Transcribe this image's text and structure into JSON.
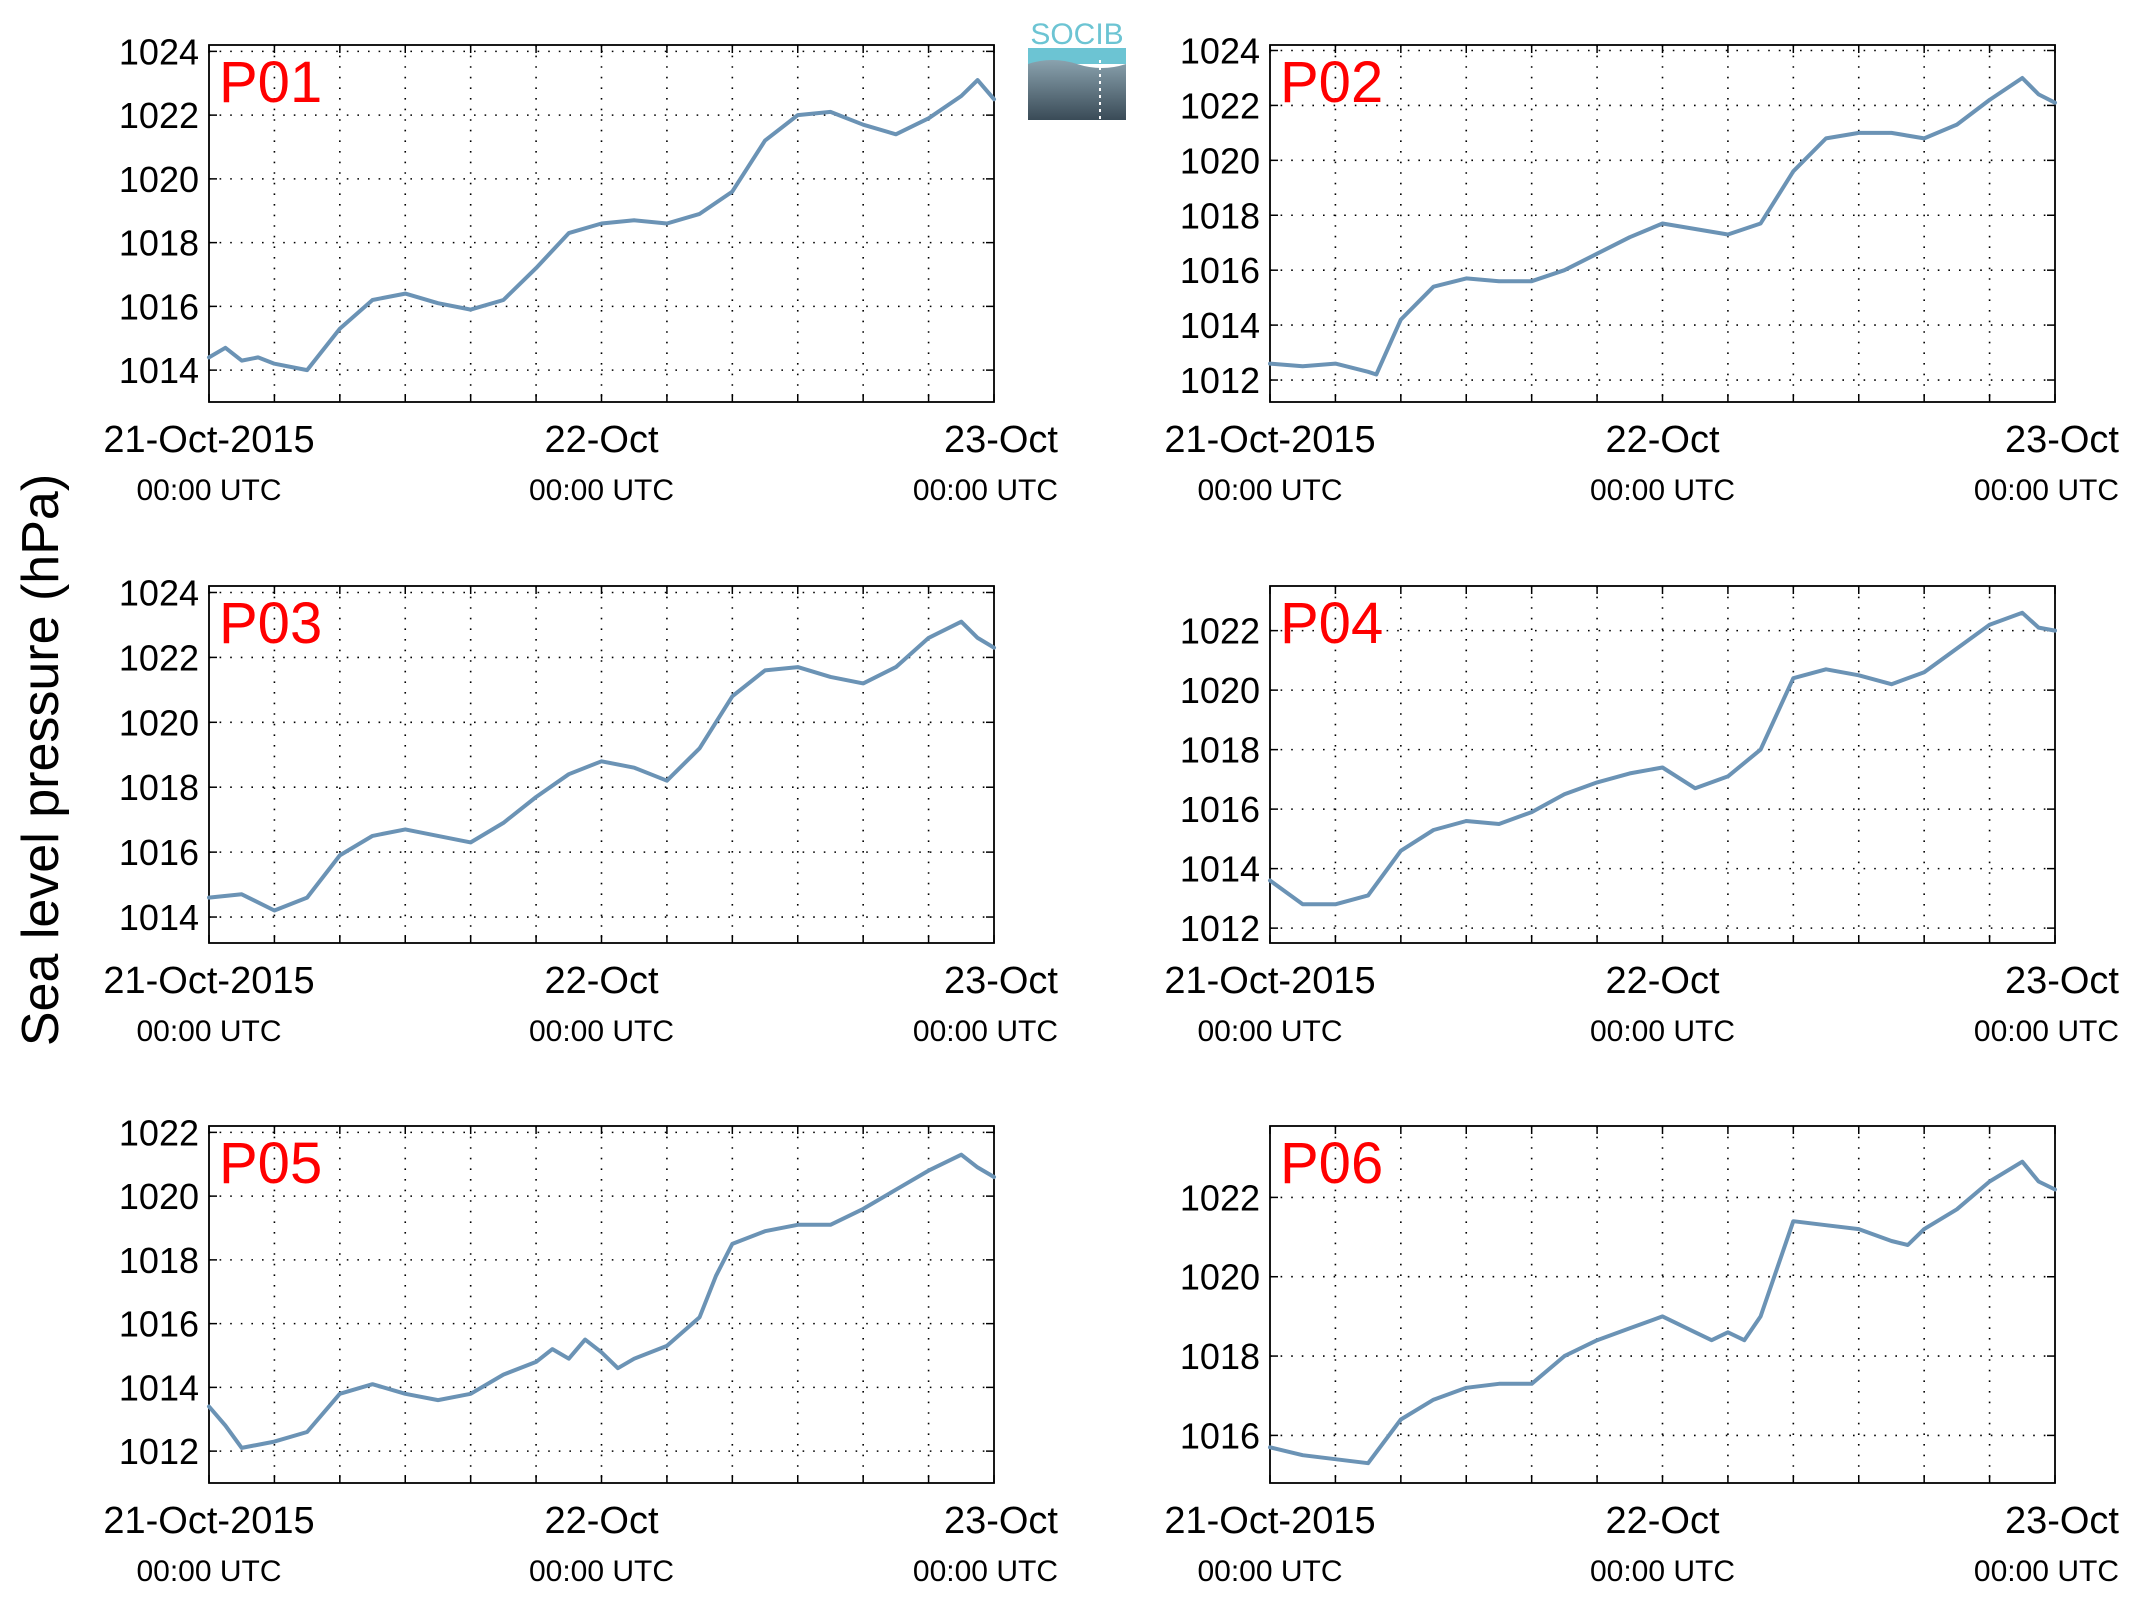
{
  "figure": {
    "ylabel": "Sea level pressure (hPa)",
    "logo_text": "SOCIB",
    "line_color": "#6b93b5",
    "label_color": "#ff0000",
    "grid_color": "#000000"
  },
  "chart_data": [
    {
      "type": "line",
      "title": "P01",
      "x_range": [
        "2015-10-21T00:00",
        "2015-10-23T00:00"
      ],
      "x_ticks": [
        {
          "label": "21-Oct-2015",
          "sub": "00:00 UTC"
        },
        {
          "label": "22-Oct",
          "sub": "00:00 UTC"
        },
        {
          "label": "23-Oct",
          "sub": "00:00 UTC"
        }
      ],
      "y_ticks": [
        1014,
        1016,
        1018,
        1020,
        1022,
        1024
      ],
      "ylim": [
        1013.0,
        1024.2
      ],
      "grid": true,
      "series": [
        {
          "x_hours": [
            0,
            1,
            2,
            3,
            4,
            6,
            8,
            10,
            12,
            14,
            16,
            18,
            20,
            22,
            24,
            26,
            28,
            30,
            32,
            34,
            36,
            38,
            40,
            42,
            44,
            46,
            47,
            48
          ],
          "values": [
            1014.4,
            1014.7,
            1014.3,
            1014.4,
            1014.2,
            1014.0,
            1015.3,
            1016.2,
            1016.4,
            1016.1,
            1015.9,
            1016.2,
            1017.2,
            1018.3,
            1018.6,
            1018.7,
            1018.6,
            1018.9,
            1019.6,
            1021.2,
            1022.0,
            1022.1,
            1021.7,
            1021.4,
            1021.9,
            1022.6,
            1023.1,
            1022.5
          ]
        }
      ]
    },
    {
      "type": "line",
      "title": "P02",
      "x_range": [
        "2015-10-21T00:00",
        "2015-10-23T00:00"
      ],
      "x_ticks": [
        {
          "label": "21-Oct-2015",
          "sub": "00:00 UTC"
        },
        {
          "label": "22-Oct",
          "sub": "00:00 UTC"
        },
        {
          "label": "23-Oct",
          "sub": "00:00 UTC"
        }
      ],
      "y_ticks": [
        1012,
        1014,
        1016,
        1018,
        1020,
        1022,
        1024
      ],
      "ylim": [
        1011.2,
        1024.2
      ],
      "grid": true,
      "series": [
        {
          "x_hours": [
            0,
            2,
            4,
            6,
            6.5,
            8,
            10,
            12,
            14,
            16,
            18,
            20,
            22,
            24,
            26,
            28,
            30,
            32,
            34,
            36,
            38,
            40,
            42,
            44,
            46,
            47,
            48
          ],
          "values": [
            1012.6,
            1012.5,
            1012.6,
            1012.3,
            1012.2,
            1014.2,
            1015.4,
            1015.7,
            1015.6,
            1015.6,
            1016.0,
            1016.6,
            1017.2,
            1017.7,
            1017.5,
            1017.3,
            1017.7,
            1019.6,
            1020.8,
            1021.0,
            1021.0,
            1020.8,
            1021.3,
            1022.2,
            1023.0,
            1022.4,
            1022.1
          ]
        }
      ]
    },
    {
      "type": "line",
      "title": "P03",
      "x_range": [
        "2015-10-21T00:00",
        "2015-10-23T00:00"
      ],
      "x_ticks": [
        {
          "label": "21-Oct-2015",
          "sub": "00:00 UTC"
        },
        {
          "label": "22-Oct",
          "sub": "00:00 UTC"
        },
        {
          "label": "23-Oct",
          "sub": "00:00 UTC"
        }
      ],
      "y_ticks": [
        1014,
        1016,
        1018,
        1020,
        1022,
        1024
      ],
      "ylim": [
        1013.2,
        1024.2
      ],
      "grid": true,
      "series": [
        {
          "x_hours": [
            0,
            2,
            4,
            6,
            8,
            10,
            12,
            14,
            16,
            18,
            20,
            22,
            24,
            26,
            27,
            28,
            30,
            32,
            34,
            36,
            38,
            40,
            42,
            44,
            46,
            47,
            48
          ],
          "values": [
            1014.6,
            1014.7,
            1014.2,
            1014.6,
            1015.9,
            1016.5,
            1016.7,
            1016.5,
            1016.3,
            1016.9,
            1017.7,
            1018.4,
            1018.8,
            1018.6,
            1018.4,
            1018.2,
            1019.2,
            1020.8,
            1021.6,
            1021.7,
            1021.4,
            1021.2,
            1021.7,
            1022.6,
            1023.1,
            1022.6,
            1022.3
          ]
        }
      ]
    },
    {
      "type": "line",
      "title": "P04",
      "x_range": [
        "2015-10-21T00:00",
        "2015-10-23T00:00"
      ],
      "x_ticks": [
        {
          "label": "21-Oct-2015",
          "sub": "00:00 UTC"
        },
        {
          "label": "22-Oct",
          "sub": "00:00 UTC"
        },
        {
          "label": "23-Oct",
          "sub": "00:00 UTC"
        }
      ],
      "y_ticks": [
        1012,
        1014,
        1016,
        1018,
        1020,
        1022
      ],
      "ylim": [
        1011.5,
        1023.5
      ],
      "grid": true,
      "series": [
        {
          "x_hours": [
            0,
            2,
            4,
            6,
            8,
            10,
            12,
            14,
            16,
            18,
            20,
            22,
            24,
            26,
            28,
            30,
            32,
            34,
            36,
            38,
            40,
            42,
            44,
            46,
            47,
            48
          ],
          "values": [
            1013.6,
            1012.8,
            1012.8,
            1013.1,
            1014.6,
            1015.3,
            1015.6,
            1015.5,
            1015.9,
            1016.5,
            1016.9,
            1017.2,
            1017.4,
            1016.7,
            1017.1,
            1018.0,
            1020.4,
            1020.7,
            1020.5,
            1020.2,
            1020.6,
            1021.4,
            1022.2,
            1022.6,
            1022.1,
            1022.0
          ]
        }
      ]
    },
    {
      "type": "line",
      "title": "P05",
      "x_range": [
        "2015-10-21T00:00",
        "2015-10-23T00:00"
      ],
      "x_ticks": [
        {
          "label": "21-Oct-2015",
          "sub": "00:00 UTC"
        },
        {
          "label": "22-Oct",
          "sub": "00:00 UTC"
        },
        {
          "label": "23-Oct",
          "sub": "00:00 UTC"
        }
      ],
      "y_ticks": [
        1012,
        1014,
        1016,
        1018,
        1020,
        1022
      ],
      "ylim": [
        1011.0,
        1022.2
      ],
      "grid": true,
      "series": [
        {
          "x_hours": [
            0,
            1,
            2,
            4,
            6,
            8,
            10,
            12,
            14,
            16,
            18,
            20,
            21,
            22,
            23,
            24,
            25,
            26,
            28,
            30,
            31,
            32,
            34,
            36,
            38,
            40,
            42,
            44,
            46,
            47,
            48
          ],
          "values": [
            1013.4,
            1012.8,
            1012.1,
            1012.3,
            1012.6,
            1013.8,
            1014.1,
            1013.8,
            1013.6,
            1013.8,
            1014.4,
            1014.8,
            1015.2,
            1014.9,
            1015.5,
            1015.1,
            1014.6,
            1014.9,
            1015.3,
            1016.2,
            1017.5,
            1018.5,
            1018.9,
            1019.1,
            1019.1,
            1019.6,
            1020.2,
            1020.8,
            1021.3,
            1020.9,
            1020.6
          ]
        }
      ]
    },
    {
      "type": "line",
      "title": "P06",
      "x_range": [
        "2015-10-21T00:00",
        "2015-10-23T00:00"
      ],
      "x_ticks": [
        {
          "label": "21-Oct-2015",
          "sub": "00:00 UTC"
        },
        {
          "label": "22-Oct",
          "sub": "00:00 UTC"
        },
        {
          "label": "23-Oct",
          "sub": "00:00 UTC"
        }
      ],
      "y_ticks": [
        1016,
        1018,
        1020,
        1022
      ],
      "ylim": [
        1014.8,
        1023.8
      ],
      "grid": true,
      "series": [
        {
          "x_hours": [
            0,
            2,
            4,
            6,
            8,
            10,
            12,
            14,
            16,
            18,
            20,
            22,
            24,
            26,
            27,
            28,
            29,
            30,
            32,
            34,
            36,
            38,
            39,
            40,
            42,
            44,
            46,
            47,
            48
          ],
          "values": [
            1015.7,
            1015.5,
            1015.4,
            1015.3,
            1016.4,
            1016.9,
            1017.2,
            1017.3,
            1017.3,
            1018.0,
            1018.4,
            1018.7,
            1019.0,
            1018.6,
            1018.4,
            1018.6,
            1018.4,
            1019.0,
            1021.4,
            1021.3,
            1021.2,
            1020.9,
            1020.8,
            1021.2,
            1021.7,
            1022.4,
            1022.9,
            1022.4,
            1022.2
          ]
        }
      ]
    }
  ]
}
